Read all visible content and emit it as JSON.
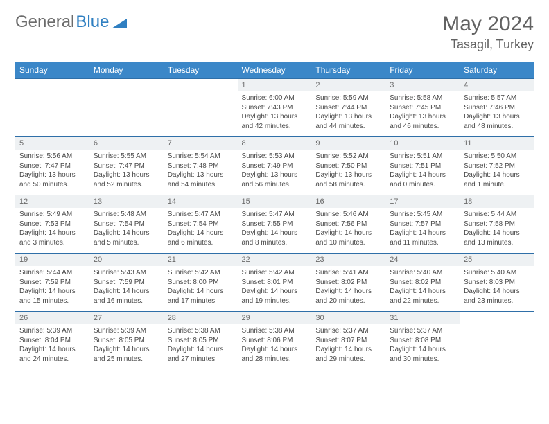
{
  "logo": {
    "text1": "General",
    "text2": "Blue"
  },
  "title": "May 2024",
  "location": "Tasagil, Turkey",
  "colors": {
    "header_bg": "#3b87c8",
    "header_text": "#ffffff",
    "row_divider": "#2f6fa8",
    "daynum_bg": "#eef1f3",
    "text_gray": "#626262"
  },
  "weekdays": [
    "Sunday",
    "Monday",
    "Tuesday",
    "Wednesday",
    "Thursday",
    "Friday",
    "Saturday"
  ],
  "weeks": [
    [
      null,
      null,
      null,
      {
        "d": "1",
        "sr": "Sunrise: 6:00 AM",
        "ss": "Sunset: 7:43 PM",
        "dl": "Daylight: 13 hours and 42 minutes."
      },
      {
        "d": "2",
        "sr": "Sunrise: 5:59 AM",
        "ss": "Sunset: 7:44 PM",
        "dl": "Daylight: 13 hours and 44 minutes."
      },
      {
        "d": "3",
        "sr": "Sunrise: 5:58 AM",
        "ss": "Sunset: 7:45 PM",
        "dl": "Daylight: 13 hours and 46 minutes."
      },
      {
        "d": "4",
        "sr": "Sunrise: 5:57 AM",
        "ss": "Sunset: 7:46 PM",
        "dl": "Daylight: 13 hours and 48 minutes."
      }
    ],
    [
      {
        "d": "5",
        "sr": "Sunrise: 5:56 AM",
        "ss": "Sunset: 7:47 PM",
        "dl": "Daylight: 13 hours and 50 minutes."
      },
      {
        "d": "6",
        "sr": "Sunrise: 5:55 AM",
        "ss": "Sunset: 7:47 PM",
        "dl": "Daylight: 13 hours and 52 minutes."
      },
      {
        "d": "7",
        "sr": "Sunrise: 5:54 AM",
        "ss": "Sunset: 7:48 PM",
        "dl": "Daylight: 13 hours and 54 minutes."
      },
      {
        "d": "8",
        "sr": "Sunrise: 5:53 AM",
        "ss": "Sunset: 7:49 PM",
        "dl": "Daylight: 13 hours and 56 minutes."
      },
      {
        "d": "9",
        "sr": "Sunrise: 5:52 AM",
        "ss": "Sunset: 7:50 PM",
        "dl": "Daylight: 13 hours and 58 minutes."
      },
      {
        "d": "10",
        "sr": "Sunrise: 5:51 AM",
        "ss": "Sunset: 7:51 PM",
        "dl": "Daylight: 14 hours and 0 minutes."
      },
      {
        "d": "11",
        "sr": "Sunrise: 5:50 AM",
        "ss": "Sunset: 7:52 PM",
        "dl": "Daylight: 14 hours and 1 minute."
      }
    ],
    [
      {
        "d": "12",
        "sr": "Sunrise: 5:49 AM",
        "ss": "Sunset: 7:53 PM",
        "dl": "Daylight: 14 hours and 3 minutes."
      },
      {
        "d": "13",
        "sr": "Sunrise: 5:48 AM",
        "ss": "Sunset: 7:54 PM",
        "dl": "Daylight: 14 hours and 5 minutes."
      },
      {
        "d": "14",
        "sr": "Sunrise: 5:47 AM",
        "ss": "Sunset: 7:54 PM",
        "dl": "Daylight: 14 hours and 6 minutes."
      },
      {
        "d": "15",
        "sr": "Sunrise: 5:47 AM",
        "ss": "Sunset: 7:55 PM",
        "dl": "Daylight: 14 hours and 8 minutes."
      },
      {
        "d": "16",
        "sr": "Sunrise: 5:46 AM",
        "ss": "Sunset: 7:56 PM",
        "dl": "Daylight: 14 hours and 10 minutes."
      },
      {
        "d": "17",
        "sr": "Sunrise: 5:45 AM",
        "ss": "Sunset: 7:57 PM",
        "dl": "Daylight: 14 hours and 11 minutes."
      },
      {
        "d": "18",
        "sr": "Sunrise: 5:44 AM",
        "ss": "Sunset: 7:58 PM",
        "dl": "Daylight: 14 hours and 13 minutes."
      }
    ],
    [
      {
        "d": "19",
        "sr": "Sunrise: 5:44 AM",
        "ss": "Sunset: 7:59 PM",
        "dl": "Daylight: 14 hours and 15 minutes."
      },
      {
        "d": "20",
        "sr": "Sunrise: 5:43 AM",
        "ss": "Sunset: 7:59 PM",
        "dl": "Daylight: 14 hours and 16 minutes."
      },
      {
        "d": "21",
        "sr": "Sunrise: 5:42 AM",
        "ss": "Sunset: 8:00 PM",
        "dl": "Daylight: 14 hours and 17 minutes."
      },
      {
        "d": "22",
        "sr": "Sunrise: 5:42 AM",
        "ss": "Sunset: 8:01 PM",
        "dl": "Daylight: 14 hours and 19 minutes."
      },
      {
        "d": "23",
        "sr": "Sunrise: 5:41 AM",
        "ss": "Sunset: 8:02 PM",
        "dl": "Daylight: 14 hours and 20 minutes."
      },
      {
        "d": "24",
        "sr": "Sunrise: 5:40 AM",
        "ss": "Sunset: 8:02 PM",
        "dl": "Daylight: 14 hours and 22 minutes."
      },
      {
        "d": "25",
        "sr": "Sunrise: 5:40 AM",
        "ss": "Sunset: 8:03 PM",
        "dl": "Daylight: 14 hours and 23 minutes."
      }
    ],
    [
      {
        "d": "26",
        "sr": "Sunrise: 5:39 AM",
        "ss": "Sunset: 8:04 PM",
        "dl": "Daylight: 14 hours and 24 minutes."
      },
      {
        "d": "27",
        "sr": "Sunrise: 5:39 AM",
        "ss": "Sunset: 8:05 PM",
        "dl": "Daylight: 14 hours and 25 minutes."
      },
      {
        "d": "28",
        "sr": "Sunrise: 5:38 AM",
        "ss": "Sunset: 8:05 PM",
        "dl": "Daylight: 14 hours and 27 minutes."
      },
      {
        "d": "29",
        "sr": "Sunrise: 5:38 AM",
        "ss": "Sunset: 8:06 PM",
        "dl": "Daylight: 14 hours and 28 minutes."
      },
      {
        "d": "30",
        "sr": "Sunrise: 5:37 AM",
        "ss": "Sunset: 8:07 PM",
        "dl": "Daylight: 14 hours and 29 minutes."
      },
      {
        "d": "31",
        "sr": "Sunrise: 5:37 AM",
        "ss": "Sunset: 8:08 PM",
        "dl": "Daylight: 14 hours and 30 minutes."
      },
      null
    ]
  ]
}
